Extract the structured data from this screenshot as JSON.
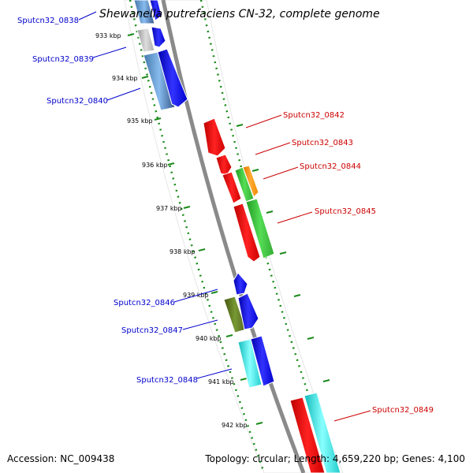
{
  "title": "Shewanella putrefaciens CN-32, complete genome",
  "footer": {
    "accession": "Accession: NC_009438",
    "summary": "Topology: circular; Length: 4,659,220 bp; Genes: 4,100"
  },
  "colors": {
    "backbone": "#8a8a8a",
    "tick": "#1a8a1a",
    "left_label": "#0000cc",
    "right_label": "#cc0000"
  },
  "kbp_labels": [
    "933 kbp",
    "934 kbp",
    "935 kbp",
    "936 kbp",
    "937 kbp",
    "938 kbp",
    "939 kbp",
    "940 kbp",
    "941 kbp",
    "942 kbp"
  ],
  "genes_left": [
    {
      "id": "Sputcn32_0838",
      "color": "#6699cc"
    },
    {
      "id": "Sputcn32_0839",
      "color": "#bbbbbb"
    },
    {
      "id": "Sputcn32_0840",
      "color": "#4477aa"
    },
    {
      "id": "Sputcn32_0846",
      "color": "#0000ee"
    },
    {
      "id": "Sputcn32_0847",
      "color": "#557722"
    },
    {
      "id": "Sputcn32_0848",
      "color": "#22dddd"
    }
  ],
  "genes_right": [
    {
      "id": "Sputcn32_0842",
      "color": "#ee0000"
    },
    {
      "id": "Sputcn32_0843",
      "color": "#ee0000"
    },
    {
      "id": "Sputcn32_0844",
      "color": "#ff8800"
    },
    {
      "id": "Sputcn32_0845",
      "color": "#33cc33"
    },
    {
      "id": "Sputcn32_0849",
      "color": "#22dddd"
    }
  ]
}
